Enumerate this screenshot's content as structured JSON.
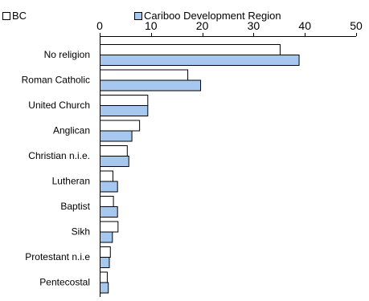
{
  "chart_data": {
    "type": "bar",
    "orientation": "horizontal",
    "legend_position": "top-left",
    "x_axis_position": "top",
    "grid": false,
    "xlim": [
      0,
      50
    ],
    "xticks": [
      "0",
      "10",
      "20",
      "30",
      "40",
      "50"
    ],
    "categories": [
      "No religion",
      "Roman Catholic",
      "United Church",
      "Anglican",
      "Christian n.i.e.",
      "Lutheran",
      "Baptist",
      "Sikh",
      "Protestant n.i.e",
      "Pentecostal"
    ],
    "series": [
      {
        "name": "BC",
        "color": "#ffffff",
        "values": [
          35.1,
          17.1,
          9.3,
          7.7,
          5.3,
          2.5,
          2.6,
          3.5,
          2.0,
          1.4
        ]
      },
      {
        "name": "Cariboo Development Region",
        "color": "#a6c8ef",
        "values": [
          38.8,
          19.6,
          9.3,
          6.2,
          5.6,
          3.4,
          3.4,
          2.4,
          1.8,
          1.6
        ]
      }
    ]
  }
}
